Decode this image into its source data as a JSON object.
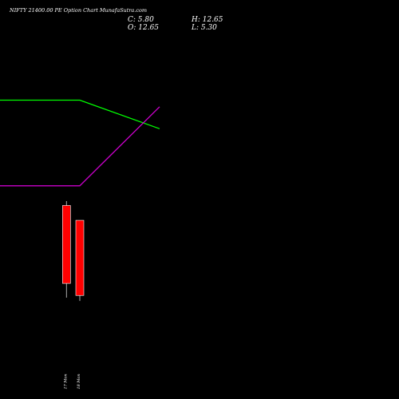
{
  "header": {
    "title": "NIFTY 21400.00  PE Option  Chart MunafaSutra.com",
    "close": "C: 5.80",
    "open": "O: 12.65",
    "high": "H: 12.65",
    "low": "L: 5.30"
  },
  "chart_data": {
    "type": "candlestick",
    "categories": [
      "17 Mon",
      "18 Mon"
    ],
    "candles": [
      {
        "label": "17 Mon",
        "open": 14.0,
        "high": 14.4,
        "low": 5.6,
        "close": 6.9,
        "color": "#ff0000"
      },
      {
        "label": "18 Mon",
        "open": 12.65,
        "high": 12.65,
        "low": 5.3,
        "close": 5.8,
        "color": "#ff0000"
      }
    ],
    "lines": [
      {
        "color": "#00ff00",
        "points": [
          {
            "x": 0,
            "y": 23.6
          },
          {
            "x": 6,
            "y": 23.6
          },
          {
            "x": 12,
            "y": 21.0
          }
        ]
      },
      {
        "color": "#cc00cc",
        "points": [
          {
            "x": 0,
            "y": 15.8
          },
          {
            "x": 6,
            "y": 15.8
          },
          {
            "x": 12,
            "y": 23.0
          }
        ]
      }
    ],
    "x_range": [
      0,
      30
    ],
    "y_range": [
      0,
      32
    ],
    "colors": {
      "background": "#000000",
      "wick": "#aaaaaa",
      "outline": "#ffffff"
    }
  }
}
